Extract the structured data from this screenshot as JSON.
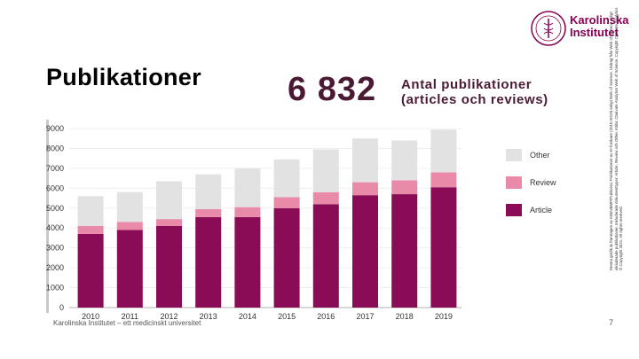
{
  "slide": {
    "title": "Publikationer",
    "big_number": "6 832",
    "big_label_line1": "Antal publikationer",
    "big_label_line2": "(articles och reviews)",
    "footer": "Karolinska Institutet – ett medicinskt universitet",
    "page_number": "7",
    "side_note": "Denna grafik är framtagen av KIB/UBMP/Publicera: Publikationer av KI-forskare (2010-2019) enligt Web of Science. Utdrag från Web of Science enligt inkluderade publikationer. Inkluderade dokumenttyper: Article, Review och Other. Källa: Clarivate Analytics Web of Science. Copyright Clarivate Analytics © Copyright 2021. All rights reserved.",
    "logo_line1": "Karolinska",
    "logo_line2": "Institutet"
  },
  "colors": {
    "article": "#8a0b56",
    "review": "#e98aa8",
    "other": "#e2e2e2",
    "brand": "#870052"
  },
  "chart_data": {
    "type": "bar",
    "stacked": true,
    "categories": [
      "2010",
      "2011",
      "2012",
      "2013",
      "2014",
      "2015",
      "2016",
      "2017",
      "2018",
      "2019"
    ],
    "series": [
      {
        "name": "Article",
        "values": [
          3700,
          3900,
          4100,
          4550,
          4550,
          5000,
          5200,
          5650,
          5700,
          6050
        ]
      },
      {
        "name": "Review",
        "values": [
          400,
          400,
          350,
          400,
          500,
          550,
          600,
          650,
          700,
          750
        ]
      },
      {
        "name": "Other",
        "values": [
          1500,
          1500,
          1900,
          1750,
          1950,
          1900,
          2150,
          2200,
          2000,
          2150
        ]
      }
    ],
    "yticks": [
      "0",
      "1000",
      "2000",
      "3000",
      "4000",
      "5000",
      "6000",
      "7000",
      "8000",
      "9000"
    ],
    "ylim": [
      0,
      9000
    ],
    "legend": [
      "Other",
      "Review",
      "Article"
    ],
    "legend_position": "right",
    "grid": true
  }
}
